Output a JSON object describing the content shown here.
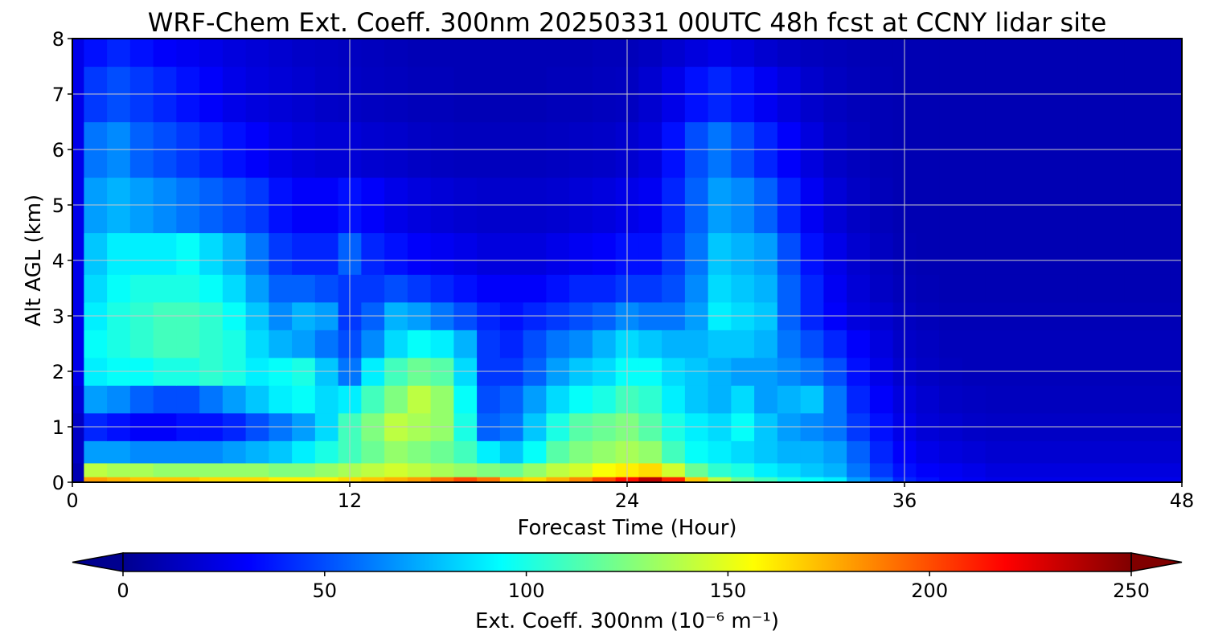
{
  "chart_data": {
    "type": "heatmap",
    "title": "WRF-Chem Ext. Coeff. 300nm  20250331 00UTC 48h fcst at CCNY lidar site",
    "xlabel": "Forecast Time (Hour)",
    "ylabel": "Alt AGL (km)",
    "xlim": [
      0,
      48
    ],
    "ylim": [
      0,
      8
    ],
    "x_ticks": [
      "0",
      "12",
      "24",
      "36",
      "48"
    ],
    "y_ticks": [
      "0",
      "1",
      "2",
      "3",
      "4",
      "5",
      "6",
      "7",
      "8"
    ],
    "grid": true,
    "colorbar": {
      "label": "Ext. Coeff. 300nm  (10⁻⁶ m⁻¹)",
      "colormap": "jet",
      "range": [
        0,
        250
      ],
      "ticks": [
        "0",
        "50",
        "100",
        "150",
        "200",
        "250"
      ],
      "extend": "both",
      "placement": "bottom"
    },
    "x_hours": [
      0,
      1,
      2,
      3,
      4,
      5,
      6,
      7,
      8,
      9,
      10,
      11,
      12,
      13,
      14,
      15,
      16,
      17,
      18,
      19,
      20,
      21,
      22,
      23,
      24,
      25,
      26,
      27,
      28,
      29,
      30,
      31,
      32,
      33,
      34,
      35,
      36,
      37,
      38,
      39,
      40,
      41,
      42,
      43,
      44,
      45,
      46,
      47,
      48
    ],
    "altitudes_km": [
      0,
      0.2,
      0.5,
      1,
      1.5,
      2,
      2.5,
      3,
      3.5,
      4,
      5,
      6,
      7,
      8
    ],
    "values": [
      [
        10,
        180,
        175,
        170,
        170,
        170,
        165,
        165,
        165,
        160,
        160,
        160,
        165,
        170,
        175,
        180,
        190,
        200,
        190,
        170,
        165,
        175,
        185,
        200,
        215,
        235,
        210,
        170,
        140,
        120,
        110,
        100,
        95,
        90,
        70,
        55,
        40,
        35,
        30,
        28,
        25,
        25,
        25,
        25,
        25,
        25,
        25,
        25,
        25
      ],
      [
        10,
        140,
        135,
        135,
        130,
        130,
        130,
        130,
        130,
        125,
        125,
        130,
        135,
        140,
        145,
        140,
        135,
        130,
        125,
        120,
        130,
        140,
        145,
        155,
        160,
        165,
        145,
        120,
        105,
        100,
        90,
        85,
        80,
        75,
        60,
        45,
        35,
        30,
        28,
        25,
        22,
        22,
        22,
        22,
        22,
        22,
        22,
        22,
        22
      ],
      [
        15,
        70,
        70,
        65,
        65,
        65,
        65,
        70,
        75,
        80,
        90,
        100,
        110,
        120,
        130,
        125,
        120,
        110,
        90,
        80,
        95,
        115,
        125,
        130,
        135,
        130,
        110,
        95,
        90,
        85,
        80,
        75,
        75,
        70,
        55,
        40,
        30,
        25,
        22,
        20,
        18,
        18,
        18,
        18,
        18,
        18,
        18,
        18,
        18
      ],
      [
        15,
        40,
        35,
        30,
        30,
        35,
        35,
        40,
        50,
        60,
        70,
        85,
        110,
        125,
        140,
        135,
        130,
        100,
        55,
        60,
        80,
        100,
        115,
        120,
        125,
        115,
        100,
        90,
        85,
        95,
        80,
        70,
        65,
        60,
        45,
        35,
        25,
        20,
        18,
        16,
        15,
        15,
        15,
        15,
        15,
        15,
        15,
        15,
        15
      ],
      [
        20,
        70,
        65,
        55,
        50,
        50,
        60,
        70,
        80,
        90,
        95,
        85,
        90,
        110,
        125,
        140,
        130,
        95,
        50,
        55,
        70,
        85,
        95,
        100,
        110,
        105,
        90,
        80,
        75,
        85,
        70,
        75,
        80,
        60,
        40,
        30,
        22,
        18,
        15,
        14,
        13,
        13,
        13,
        13,
        13,
        13,
        13,
        13,
        13
      ],
      [
        25,
        90,
        95,
        95,
        100,
        100,
        105,
        100,
        90,
        95,
        100,
        80,
        60,
        90,
        110,
        120,
        115,
        85,
        45,
        45,
        55,
        70,
        80,
        85,
        95,
        95,
        85,
        80,
        75,
        70,
        70,
        65,
        60,
        50,
        35,
        25,
        18,
        15,
        13,
        12,
        12,
        12,
        12,
        12,
        12,
        12,
        12,
        12,
        12
      ],
      [
        25,
        95,
        100,
        105,
        110,
        110,
        105,
        100,
        85,
        75,
        70,
        60,
        50,
        65,
        85,
        95,
        90,
        75,
        45,
        40,
        50,
        60,
        65,
        75,
        85,
        80,
        75,
        75,
        80,
        80,
        75,
        60,
        50,
        40,
        30,
        22,
        16,
        14,
        12,
        12,
        12,
        12,
        12,
        12,
        12,
        12,
        12,
        12,
        12
      ],
      [
        25,
        90,
        100,
        105,
        110,
        110,
        105,
        95,
        80,
        65,
        75,
        70,
        45,
        55,
        75,
        70,
        60,
        50,
        40,
        35,
        40,
        45,
        50,
        55,
        65,
        60,
        60,
        70,
        90,
        85,
        80,
        55,
        40,
        30,
        22,
        18,
        14,
        12,
        11,
        11,
        11,
        11,
        11,
        11,
        11,
        11,
        11,
        11,
        11
      ],
      [
        25,
        85,
        95,
        100,
        100,
        100,
        95,
        85,
        70,
        55,
        55,
        50,
        45,
        45,
        50,
        45,
        40,
        35,
        30,
        30,
        30,
        35,
        40,
        40,
        45,
        45,
        50,
        65,
        85,
        80,
        75,
        55,
        40,
        28,
        20,
        15,
        12,
        11,
        10,
        10,
        10,
        10,
        10,
        10,
        10,
        10,
        10,
        10,
        10
      ],
      [
        25,
        80,
        90,
        90,
        90,
        95,
        85,
        75,
        60,
        45,
        40,
        40,
        55,
        40,
        35,
        30,
        28,
        25,
        22,
        22,
        22,
        25,
        28,
        30,
        35,
        35,
        45,
        60,
        80,
        75,
        70,
        50,
        35,
        25,
        18,
        14,
        11,
        10,
        10,
        10,
        10,
        10,
        10,
        10,
        10,
        10,
        10,
        10,
        10
      ],
      [
        25,
        70,
        75,
        70,
        65,
        60,
        55,
        50,
        45,
        35,
        30,
        30,
        35,
        30,
        25,
        22,
        20,
        18,
        17,
        17,
        17,
        18,
        20,
        22,
        25,
        28,
        40,
        55,
        70,
        65,
        55,
        40,
        28,
        20,
        15,
        12,
        10,
        10,
        10,
        10,
        10,
        10,
        10,
        10,
        10,
        10,
        10,
        10,
        10
      ],
      [
        25,
        60,
        65,
        55,
        50,
        45,
        40,
        35,
        30,
        25,
        22,
        20,
        20,
        18,
        17,
        15,
        14,
        13,
        13,
        13,
        13,
        14,
        15,
        16,
        18,
        22,
        35,
        50,
        60,
        50,
        40,
        30,
        22,
        16,
        13,
        11,
        10,
        10,
        10,
        10,
        10,
        10,
        10,
        10,
        10,
        10,
        10,
        10,
        10
      ],
      [
        25,
        45,
        50,
        45,
        40,
        35,
        30,
        25,
        22,
        20,
        18,
        16,
        15,
        14,
        13,
        12,
        12,
        11,
        11,
        11,
        11,
        12,
        12,
        13,
        14,
        18,
        25,
        35,
        40,
        35,
        28,
        22,
        17,
        14,
        12,
        11,
        10,
        10,
        10,
        10,
        10,
        10,
        10,
        10,
        10,
        10,
        10,
        10,
        10
      ],
      [
        25,
        35,
        40,
        35,
        30,
        28,
        25,
        22,
        20,
        18,
        16,
        15,
        14,
        13,
        12,
        11,
        11,
        11,
        11,
        11,
        11,
        11,
        11,
        12,
        12,
        14,
        18,
        22,
        25,
        22,
        18,
        15,
        13,
        12,
        11,
        10,
        10,
        10,
        10,
        10,
        10,
        10,
        10,
        10,
        10,
        10,
        10,
        10,
        10
      ]
    ]
  }
}
